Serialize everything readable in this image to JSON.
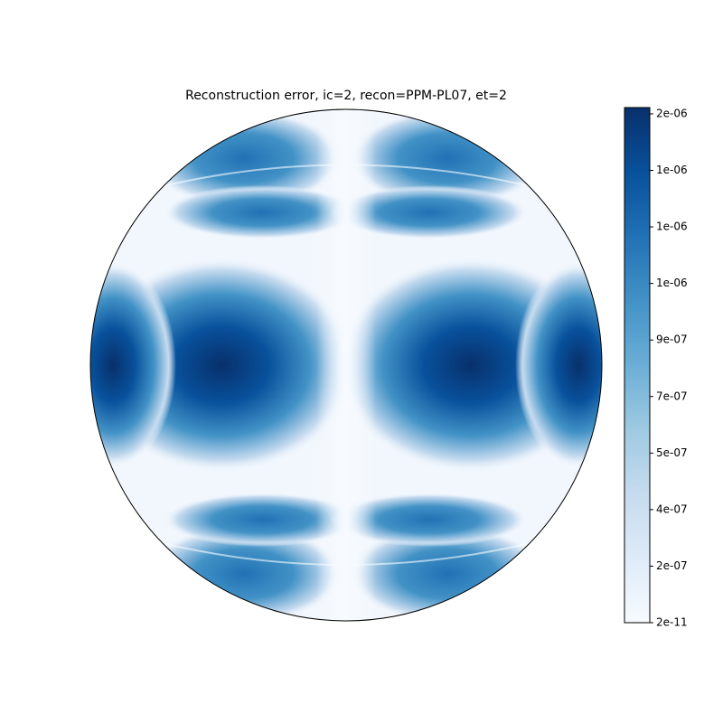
{
  "chart_data": {
    "type": "heatmap",
    "title": "Reconstruction error, ic=2, recon=PPM-PL07, et=2",
    "colormap": [
      "#f7fbff",
      "#deebf7",
      "#c6dbef",
      "#9ecae1",
      "#6baed6",
      "#4292c6",
      "#2171b5",
      "#08519c",
      "#08306b"
    ],
    "zlim": [
      2e-11,
      1.64e-06
    ],
    "zticks": [
      {
        "value": 2e-11,
        "label": "2e-11"
      },
      {
        "value": 1.8e-07,
        "label": "2e-07"
      },
      {
        "value": 3.6e-07,
        "label": "4e-07"
      },
      {
        "value": 5.4e-07,
        "label": "5e-07"
      },
      {
        "value": 7.2e-07,
        "label": "7e-07"
      },
      {
        "value": 9e-07,
        "label": "9e-07"
      },
      {
        "value": 1.08e-06,
        "label": "1e-06"
      },
      {
        "value": 1.26e-06,
        "label": "1e-06"
      },
      {
        "value": 1.44e-06,
        "label": "1e-06"
      },
      {
        "value": 1.62e-06,
        "label": "2e-06"
      }
    ]
  }
}
